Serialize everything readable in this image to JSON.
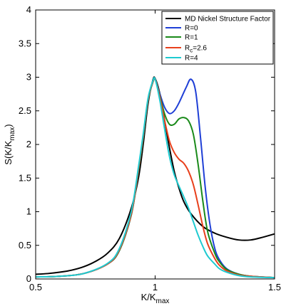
{
  "chart_data": {
    "type": "line",
    "xlabel": "K/K",
    "xlabel_sub": "max",
    "ylabel_main": "S(K/K",
    "ylabel_sub": "max",
    "ylabel_close": ")",
    "xlim": [
      0.5,
      1.5
    ],
    "ylim": [
      0,
      4
    ],
    "xticks": [
      0.5,
      1,
      1.5
    ],
    "xtick_labels": [
      "0.5",
      "1",
      "1.5"
    ],
    "yticks": [
      0,
      0.5,
      1,
      1.5,
      2,
      2.5,
      3,
      3.5,
      4
    ],
    "ytick_labels": [
      "0",
      "0.5",
      "1",
      "1.5",
      "2",
      "2.5",
      "3",
      "3.5",
      "4"
    ],
    "grid": false,
    "legend_position": "top-right",
    "series": [
      {
        "name": "MD Nickel Structure Factor",
        "color": "#000000",
        "x": [
          0.5,
          0.55,
          0.6,
          0.65,
          0.7,
          0.75,
          0.8,
          0.85,
          0.9,
          0.93,
          0.95,
          0.97,
          0.99,
          1.0,
          1.02,
          1.04,
          1.06,
          1.08,
          1.1,
          1.12,
          1.15,
          1.2,
          1.25,
          1.3,
          1.35,
          1.4,
          1.45,
          1.5
        ],
        "y": [
          0.07,
          0.08,
          0.1,
          0.13,
          0.18,
          0.26,
          0.38,
          0.6,
          1.05,
          1.5,
          2.0,
          2.6,
          2.95,
          2.98,
          2.75,
          2.35,
          1.95,
          1.6,
          1.35,
          1.15,
          0.97,
          0.78,
          0.68,
          0.62,
          0.58,
          0.58,
          0.62,
          0.67
        ]
      },
      {
        "name": "R=0",
        "label_main": "R=0",
        "color": "#1f3fd6",
        "x": [
          0.5,
          0.6,
          0.7,
          0.8,
          0.85,
          0.9,
          0.93,
          0.95,
          0.97,
          0.99,
          1.0,
          1.02,
          1.04,
          1.06,
          1.08,
          1.1,
          1.13,
          1.15,
          1.17,
          1.19,
          1.21,
          1.23,
          1.25,
          1.27,
          1.3,
          1.35,
          1.4,
          1.5
        ],
        "y": [
          0.03,
          0.04,
          0.08,
          0.22,
          0.42,
          0.95,
          1.6,
          2.1,
          2.65,
          2.92,
          2.97,
          2.75,
          2.55,
          2.46,
          2.5,
          2.62,
          2.85,
          2.97,
          2.78,
          2.1,
          1.35,
          0.8,
          0.45,
          0.28,
          0.15,
          0.07,
          0.04,
          0.02
        ]
      },
      {
        "name": "R=1",
        "label_main": "R=1",
        "color": "#1a8a1a",
        "x": [
          0.5,
          0.6,
          0.7,
          0.8,
          0.85,
          0.9,
          0.93,
          0.95,
          0.97,
          0.99,
          1.0,
          1.02,
          1.04,
          1.06,
          1.08,
          1.1,
          1.12,
          1.14,
          1.16,
          1.18,
          1.2,
          1.22,
          1.25,
          1.27,
          1.3,
          1.35,
          1.4,
          1.5
        ],
        "y": [
          0.03,
          0.04,
          0.08,
          0.22,
          0.42,
          0.95,
          1.6,
          2.1,
          2.65,
          2.92,
          2.97,
          2.72,
          2.45,
          2.3,
          2.3,
          2.38,
          2.4,
          2.35,
          2.15,
          1.7,
          1.15,
          0.7,
          0.38,
          0.25,
          0.14,
          0.07,
          0.04,
          0.02
        ]
      },
      {
        "name": "R_c=2.6",
        "label_main": "R",
        "label_sub": "c",
        "label_rest": "=2.6",
        "color": "#e8401c",
        "x": [
          0.5,
          0.6,
          0.7,
          0.8,
          0.85,
          0.9,
          0.93,
          0.95,
          0.97,
          0.99,
          1.0,
          1.02,
          1.04,
          1.06,
          1.08,
          1.1,
          1.12,
          1.14,
          1.16,
          1.18,
          1.2,
          1.22,
          1.25,
          1.27,
          1.3,
          1.35,
          1.4,
          1.5
        ],
        "y": [
          0.03,
          0.04,
          0.08,
          0.22,
          0.43,
          0.96,
          1.62,
          2.12,
          2.66,
          2.93,
          2.97,
          2.7,
          2.35,
          2.05,
          1.88,
          1.78,
          1.72,
          1.6,
          1.4,
          1.1,
          0.78,
          0.52,
          0.3,
          0.2,
          0.12,
          0.06,
          0.04,
          0.02
        ]
      },
      {
        "name": "R=4",
        "label_main": "R=4",
        "color": "#1ecad0",
        "x": [
          0.5,
          0.6,
          0.7,
          0.8,
          0.85,
          0.9,
          0.93,
          0.95,
          0.97,
          0.99,
          1.0,
          1.02,
          1.04,
          1.06,
          1.08,
          1.1,
          1.12,
          1.14,
          1.16,
          1.18,
          1.2,
          1.22,
          1.25,
          1.27,
          1.3,
          1.35,
          1.4,
          1.5
        ],
        "y": [
          0.03,
          0.04,
          0.08,
          0.23,
          0.45,
          1.0,
          1.66,
          2.15,
          2.68,
          2.94,
          2.97,
          2.65,
          2.22,
          1.82,
          1.55,
          1.38,
          1.22,
          1.05,
          0.85,
          0.65,
          0.48,
          0.34,
          0.22,
          0.15,
          0.1,
          0.05,
          0.03,
          0.02
        ]
      }
    ]
  }
}
